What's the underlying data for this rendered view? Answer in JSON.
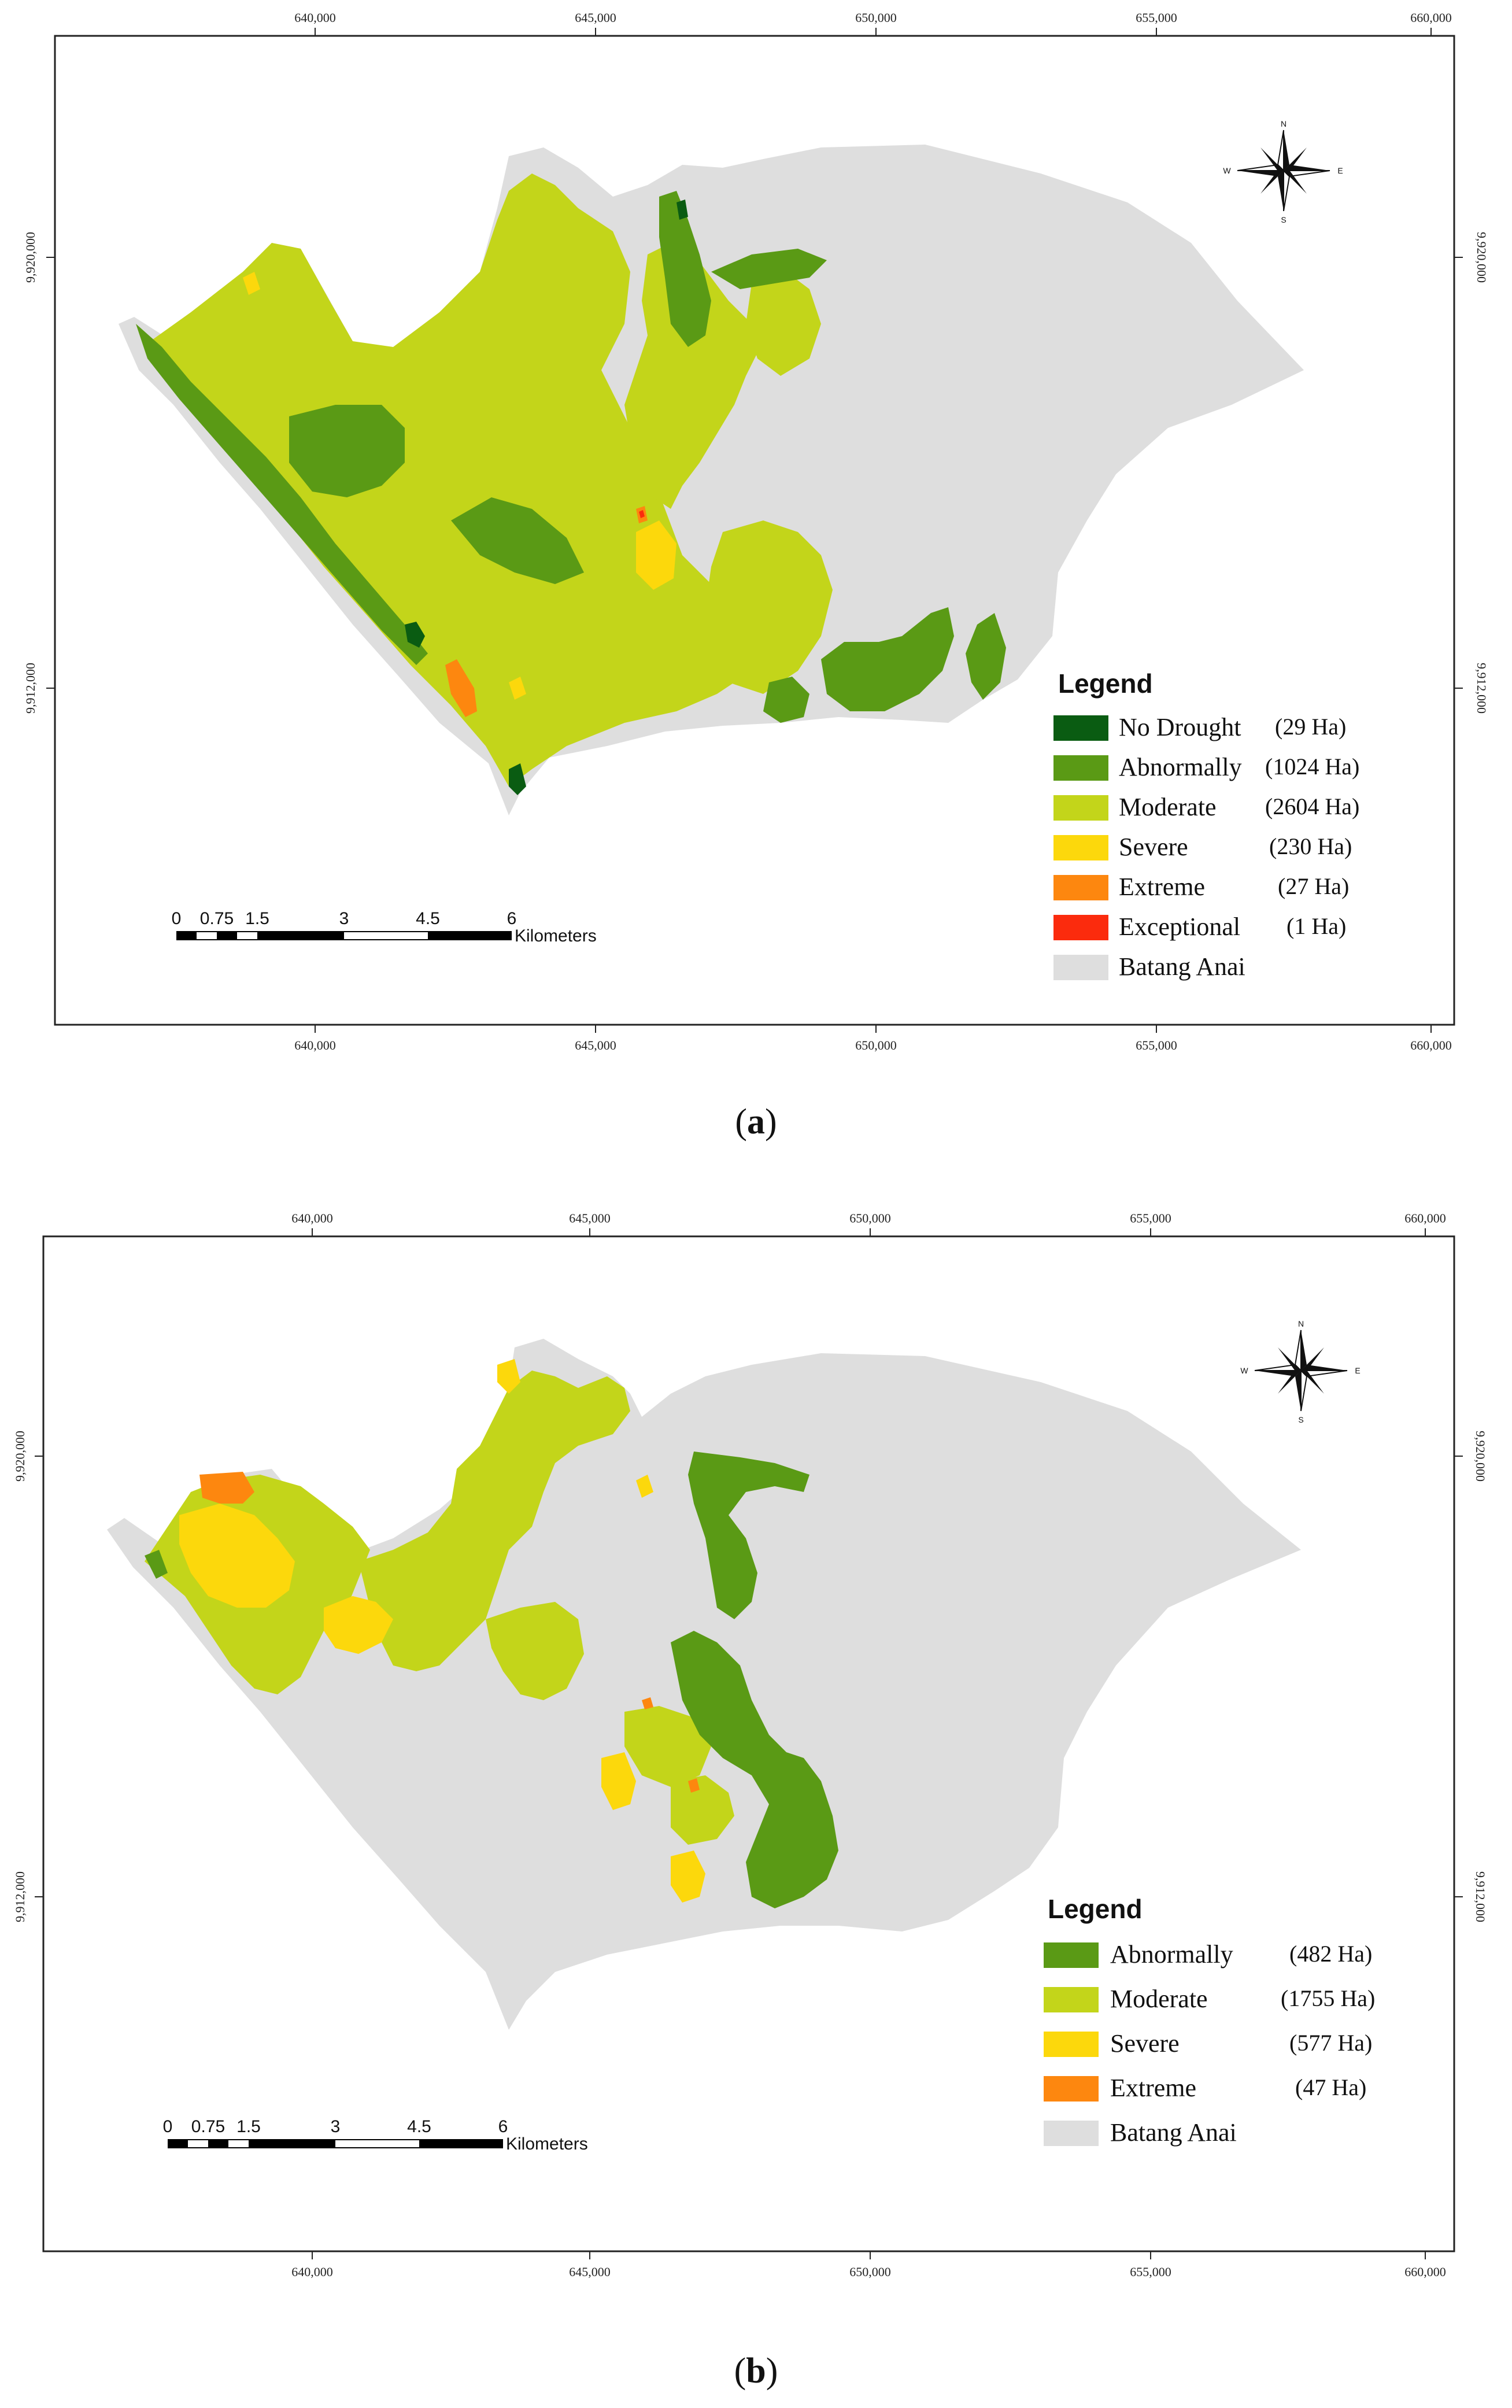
{
  "maps": [
    {
      "caption_open": "(",
      "caption_letter": "a",
      "caption_close": ")",
      "x_ticks": [
        "640,000",
        "645,000",
        "650,000",
        "655,000",
        "660,000"
      ],
      "y_ticks": [
        "9,920,000",
        "9,912,000"
      ],
      "legend_title": "Legend",
      "legend": [
        {
          "label": "No Drought",
          "area": "(29 Ha)",
          "color": "#0a5c12"
        },
        {
          "label": "Abnormally",
          "area": "(1024 Ha)",
          "color": "#5a9a15"
        },
        {
          "label": "Moderate",
          "area": "(2604 Ha)",
          "color": "#c3d51a"
        },
        {
          "label": "Severe",
          "area": "(230 Ha)",
          "color": "#fcd80c"
        },
        {
          "label": "Extreme",
          "area": "(27 Ha)",
          "color": "#fd870f"
        },
        {
          "label": "Exceptional",
          "area": "(1 Ha)",
          "color": "#fb2b0d"
        },
        {
          "label": "Batang Anai",
          "area": "",
          "color": "#dedede"
        }
      ],
      "scale": {
        "labels": [
          "0",
          "0.75",
          "1.5",
          "3",
          "4.5",
          "6"
        ],
        "unit": "Kilometers"
      },
      "compass": {
        "n": "N",
        "s": "S",
        "w": "W",
        "e": "E",
        "icon": "compass-rose-icon"
      }
    },
    {
      "caption_open": "(",
      "caption_letter": "b",
      "caption_close": ")",
      "x_ticks": [
        "640,000",
        "645,000",
        "650,000",
        "655,000",
        "660,000"
      ],
      "y_ticks": [
        "9,920,000",
        "9,912,000"
      ],
      "legend_title": "Legend",
      "legend": [
        {
          "label": "Abnormally",
          "area": "(482 Ha)",
          "color": "#5a9a15"
        },
        {
          "label": "Moderate",
          "area": "(1755 Ha)",
          "color": "#c3d51a"
        },
        {
          "label": "Severe",
          "area": "(577 Ha)",
          "color": "#fcd80c"
        },
        {
          "label": "Extreme",
          "area": "(47 Ha)",
          "color": "#fd870f"
        },
        {
          "label": "Batang Anai",
          "area": "",
          "color": "#dedede"
        }
      ],
      "scale": {
        "labels": [
          "0",
          "0.75",
          "1.5",
          "3",
          "4.5",
          "6"
        ],
        "unit": "Kilometers"
      },
      "compass": {
        "n": "N",
        "s": "S",
        "w": "W",
        "e": "E",
        "icon": "compass-rose-icon"
      }
    }
  ]
}
